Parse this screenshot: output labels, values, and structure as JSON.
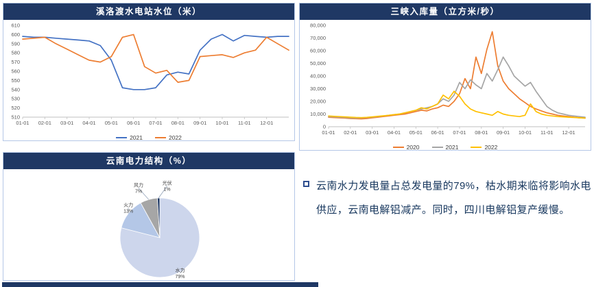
{
  "colors": {
    "header_bg": "#1F3864",
    "panel_border": "#B4C7E7",
    "series_blue": "#4472C4",
    "series_orange": "#ED7D31",
    "series_gray": "#A5A5A5",
    "series_yellow": "#FFC000",
    "note_text": "#17375E"
  },
  "chart_data": [
    {
      "type": "line",
      "title": "溪洛渡水电站水位（米）",
      "x_ticks": [
        "01-01",
        "02-01",
        "03-01",
        "04-01",
        "05-01",
        "06-01",
        "07-01",
        "08-01",
        "09-01",
        "10-01",
        "11-01",
        "12-01"
      ],
      "x_tick_step": 2,
      "ylim": [
        510,
        610
      ],
      "y_step": 10,
      "grid": false,
      "legend_position": "bottom",
      "series": [
        {
          "name": "2021",
          "color": "#4472C4",
          "values": [
            598,
            597,
            597,
            596,
            595,
            594,
            593,
            588,
            572,
            542,
            540,
            540,
            542,
            556,
            559,
            557,
            583,
            595,
            600,
            593,
            599,
            598,
            597,
            598,
            598
          ]
        },
        {
          "name": "2022",
          "color": "#ED7D31",
          "values": [
            595,
            596,
            597,
            590,
            584,
            578,
            572,
            570,
            576,
            597,
            600,
            565,
            558,
            561,
            548,
            550,
            576,
            577,
            578,
            575,
            580,
            583,
            597,
            590,
            583
          ]
        }
      ]
    },
    {
      "type": "line",
      "title": "三峡入库量（立方米/秒）",
      "x_ticks": [
        "01-01",
        "02-01",
        "03-01",
        "04-01",
        "05-01",
        "06-01",
        "07-01",
        "08-01",
        "09-01",
        "10-01",
        "11-01",
        "12-01"
      ],
      "x_tick_step": 4,
      "ylim": [
        0,
        80000
      ],
      "y_step": 10000,
      "grid": false,
      "legend_position": "bottom",
      "series": [
        {
          "name": "2020",
          "color": "#ED7D31",
          "values": [
            7500,
            7200,
            7000,
            6800,
            6500,
            6300,
            6200,
            6500,
            7000,
            7500,
            8000,
            8500,
            9000,
            9500,
            10000,
            11000,
            12000,
            13000,
            12500,
            14000,
            15000,
            17000,
            16000,
            20000,
            26000,
            38000,
            30000,
            55000,
            42000,
            61000,
            75000,
            48000,
            36000,
            30000,
            26000,
            22000,
            19000,
            16000,
            14000,
            12500,
            11000,
            10000,
            9000,
            8500,
            8000,
            7500,
            7000,
            6800
          ]
        },
        {
          "name": "2021",
          "color": "#A5A5A5",
          "values": [
            8000,
            7800,
            7500,
            7300,
            7000,
            6800,
            7000,
            7200,
            7500,
            8000,
            8500,
            9000,
            9500,
            10000,
            11000,
            12000,
            13000,
            14000,
            15000,
            16000,
            18000,
            22000,
            20000,
            25000,
            35000,
            30000,
            37000,
            33000,
            30000,
            42000,
            36000,
            45000,
            55000,
            48000,
            40000,
            36000,
            32000,
            35000,
            28000,
            22000,
            16000,
            13000,
            11000,
            10000,
            9000,
            8500,
            8000,
            7500
          ]
        },
        {
          "name": "2022",
          "color": "#FFC000",
          "values": [
            8500,
            8200,
            8000,
            7800,
            7500,
            7300,
            7200,
            7400,
            7800,
            8200,
            8600,
            9000,
            9500,
            10000,
            11000,
            12000,
            13000,
            15000,
            14000,
            16000,
            18000,
            25000,
            22000,
            28000,
            24000,
            18000,
            14000,
            12000,
            11000,
            10000,
            9000,
            12000,
            10000,
            9000,
            8500,
            8000,
            9000,
            18000,
            12000,
            10000,
            9000,
            8500,
            8000,
            7800,
            7500,
            7300,
            7000,
            6800
          ]
        }
      ]
    },
    {
      "type": "pie",
      "title": "云南电力结构（%）",
      "categories": [
        "水力",
        "火力",
        "风力",
        "光伏"
      ],
      "values": [
        79,
        13,
        7,
        1
      ],
      "colors": [
        "#CDD6EC",
        "#B4C7E7",
        "#A6A6A6",
        "#1F3864"
      ]
    }
  ],
  "note": {
    "text": "云南水力发电量占总发电量的79%，枯水期来临将影响水电供应，云南电解铝减产。同时，四川电解铝复产缓慢。"
  }
}
